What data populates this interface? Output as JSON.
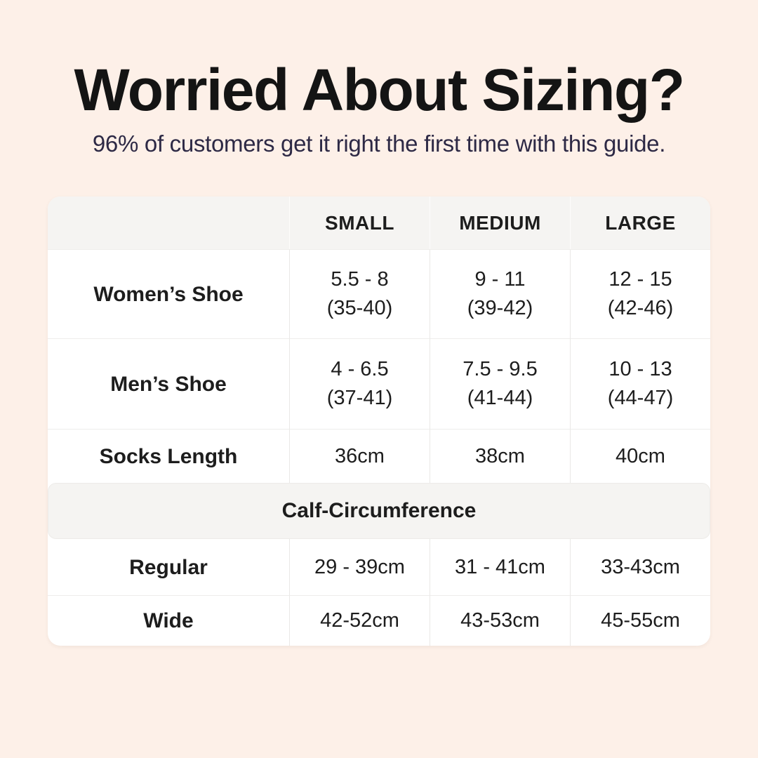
{
  "page": {
    "title": "Worried About Sizing?",
    "subtitle": "96% of customers get it right the first time with this guide."
  },
  "colors": {
    "background": "#fdf0e8",
    "table_background": "#ffffff",
    "header_row_background": "#f5f4f2",
    "title_color": "#141414",
    "subtitle_color": "#2d2945",
    "text_color": "#1d1d1d",
    "divider_color": "#ebeae8"
  },
  "chart_data": {
    "type": "table",
    "title": "Worried About Sizing?",
    "subtitle": "96% of customers get it right the first time with this guide.",
    "columns": [
      "",
      "SMALL",
      "MEDIUM",
      "LARGE"
    ],
    "rows": [
      {
        "label": "Women’s Shoe",
        "cells": [
          {
            "v": "5.5 - 8",
            "sub": "(35-40)"
          },
          {
            "v": "9 - 11",
            "sub": "(39-42)"
          },
          {
            "v": "12 - 15",
            "sub": "(42-46)"
          }
        ]
      },
      {
        "label": "Men’s Shoe",
        "cells": [
          {
            "v": "4 - 6.5",
            "sub": "(37-41)"
          },
          {
            "v": "7.5 - 9.5",
            "sub": "(41-44)"
          },
          {
            "v": "10 - 13",
            "sub": "(44-47)"
          }
        ]
      },
      {
        "label": "Socks Length",
        "cells": [
          {
            "v": "36cm"
          },
          {
            "v": "38cm"
          },
          {
            "v": "40cm"
          }
        ]
      }
    ],
    "section_header": "Calf-Circumference",
    "section_rows": [
      {
        "label": "Regular",
        "cells": [
          {
            "v": "29 - 39cm"
          },
          {
            "v": "31 - 41cm"
          },
          {
            "v": "33-43cm"
          }
        ]
      },
      {
        "label": "Wide",
        "cells": [
          {
            "v": "42-52cm"
          },
          {
            "v": "43-53cm"
          },
          {
            "v": "45-55cm"
          }
        ]
      }
    ]
  }
}
